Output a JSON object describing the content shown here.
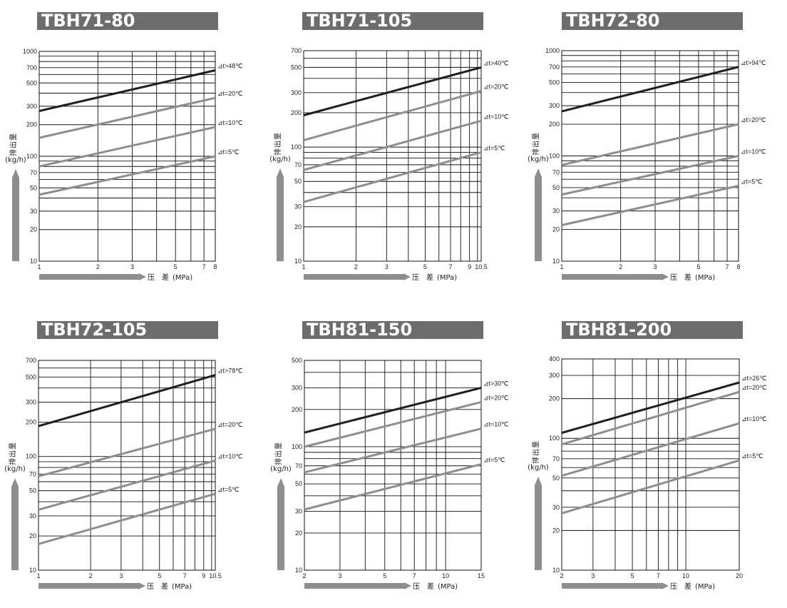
{
  "colors": {
    "title_bar": "#6d6d6d",
    "grid": "#111111",
    "dark_series": "#1f1f1f",
    "gray_series": "#8e8e8e",
    "arrow": "#8e8e8e"
  },
  "axis_labels": {
    "ylabel_chars": [
      "排",
      "出",
      "量"
    ],
    "y_unit": "(kg/h)",
    "xlabel_chars": [
      "压",
      "差"
    ],
    "x_unit": "(MPa)"
  },
  "chart_data": [
    {
      "title": "TBH71-80",
      "type": "line",
      "x_scale": "log",
      "y_scale": "log",
      "xlim": [
        1,
        8
      ],
      "ylim": [
        10,
        1000
      ],
      "x_ticks": [
        1,
        2,
        3,
        5,
        7,
        8
      ],
      "x_grid": [
        1,
        2,
        3,
        4,
        5,
        6,
        7,
        8
      ],
      "y_ticks": [
        10,
        20,
        30,
        50,
        70,
        100,
        200,
        300,
        500,
        700,
        1000
      ],
      "y_grid": [
        10,
        20,
        30,
        40,
        50,
        60,
        70,
        80,
        90,
        100,
        200,
        300,
        400,
        500,
        600,
        700,
        800,
        900,
        1000
      ],
      "xlabel": "压 差(MPa)",
      "ylabel": "排出量(kg/h)",
      "series": [
        {
          "name": "⊿t>48℃",
          "x": [
            1,
            8
          ],
          "y": [
            270,
            660
          ],
          "style": "dark"
        },
        {
          "name": "⊿t=20℃",
          "x": [
            1,
            8
          ],
          "y": [
            150,
            360
          ],
          "style": "gray"
        },
        {
          "name": "⊿t=10℃",
          "x": [
            1,
            8
          ],
          "y": [
            80,
            190
          ],
          "style": "gray"
        },
        {
          "name": "⊿t=5℃",
          "x": [
            1,
            8
          ],
          "y": [
            43,
            100
          ],
          "style": "gray"
        }
      ]
    },
    {
      "title": "TBH71-105",
      "type": "line",
      "x_scale": "log",
      "y_scale": "log",
      "xlim": [
        1,
        10.5
      ],
      "ylim": [
        10,
        700
      ],
      "x_ticks": [
        1,
        2,
        3,
        5,
        7,
        9,
        10.5
      ],
      "x_tick_labels": [
        "1",
        "2",
        "3",
        "5",
        "7",
        "9",
        "10.5"
      ],
      "x_grid": [
        1,
        2,
        3,
        4,
        5,
        6,
        7,
        8,
        9,
        10,
        10.5
      ],
      "y_ticks": [
        10,
        20,
        30,
        50,
        70,
        100,
        200,
        300,
        500,
        700
      ],
      "y_grid": [
        10,
        20,
        30,
        40,
        50,
        60,
        70,
        80,
        90,
        100,
        200,
        300,
        400,
        500,
        600,
        700
      ],
      "xlabel": "压 差(MPa)",
      "ylabel": "排出量(kg/h)",
      "series": [
        {
          "name": "⊿t>40℃",
          "x": [
            1,
            10.5
          ],
          "y": [
            190,
            500
          ],
          "style": "dark"
        },
        {
          "name": "⊿t=20℃",
          "x": [
            1,
            10.5
          ],
          "y": [
            115,
            310
          ],
          "style": "gray"
        },
        {
          "name": "⊿t=10℃",
          "x": [
            1,
            10.5
          ],
          "y": [
            63,
            170
          ],
          "style": "gray"
        },
        {
          "name": "⊿t=5℃",
          "x": [
            1,
            10.5
          ],
          "y": [
            33,
            90
          ],
          "style": "gray"
        }
      ]
    },
    {
      "title": "TBH72-80",
      "type": "line",
      "x_scale": "log",
      "y_scale": "log",
      "xlim": [
        1,
        8
      ],
      "ylim": [
        10,
        1000
      ],
      "x_ticks": [
        1,
        2,
        3,
        5,
        7,
        8
      ],
      "x_grid": [
        1,
        2,
        3,
        4,
        5,
        6,
        7,
        8
      ],
      "y_ticks": [
        10,
        20,
        30,
        50,
        70,
        100,
        200,
        300,
        500,
        700,
        1000
      ],
      "y_grid": [
        10,
        20,
        30,
        40,
        50,
        60,
        70,
        80,
        90,
        100,
        200,
        300,
        400,
        500,
        600,
        700,
        800,
        900,
        1000
      ],
      "xlabel": "压 差(MPa)",
      "ylabel": "排出量(kg/h)",
      "series": [
        {
          "name": "⊿t>94℃",
          "x": [
            1,
            8
          ],
          "y": [
            265,
            700
          ],
          "style": "dark"
        },
        {
          "name": "⊿t=20℃",
          "x": [
            1,
            8
          ],
          "y": [
            82,
            200
          ],
          "style": "gray"
        },
        {
          "name": "⊿t=10℃",
          "x": [
            1,
            8
          ],
          "y": [
            43,
            100
          ],
          "style": "gray"
        },
        {
          "name": "⊿t=5℃",
          "x": [
            1,
            8
          ],
          "y": [
            22,
            52
          ],
          "style": "gray"
        }
      ]
    },
    {
      "title": "TBH72-105",
      "type": "line",
      "x_scale": "log",
      "y_scale": "log",
      "xlim": [
        1,
        10.5
      ],
      "ylim": [
        10,
        700
      ],
      "x_ticks": [
        1,
        2,
        3,
        5,
        7,
        9,
        10.5
      ],
      "x_tick_labels": [
        "1",
        "2",
        "3",
        "5",
        "7",
        "9",
        "10.5"
      ],
      "x_grid": [
        1,
        2,
        3,
        4,
        5,
        6,
        7,
        8,
        9,
        10,
        10.5
      ],
      "y_ticks": [
        10,
        20,
        30,
        50,
        70,
        100,
        200,
        300,
        500,
        700
      ],
      "y_grid": [
        10,
        20,
        30,
        40,
        50,
        60,
        70,
        80,
        90,
        100,
        200,
        300,
        400,
        500,
        600,
        700
      ],
      "xlabel": "压 差(MPa)",
      "ylabel": "排出量(kg/h)",
      "series": [
        {
          "name": "⊿t>78℃",
          "x": [
            1,
            10.5
          ],
          "y": [
            185,
            520
          ],
          "style": "dark"
        },
        {
          "name": "⊿t=20℃",
          "x": [
            1,
            10.5
          ],
          "y": [
            67,
            175
          ],
          "style": "gray"
        },
        {
          "name": "⊿t=10℃",
          "x": [
            1,
            10.5
          ],
          "y": [
            34,
            92
          ],
          "style": "gray"
        },
        {
          "name": "⊿t=5℃",
          "x": [
            1,
            10.5
          ],
          "y": [
            17,
            47
          ],
          "style": "gray"
        }
      ]
    },
    {
      "title": "TBH81-150",
      "type": "line",
      "x_scale": "log",
      "y_scale": "log",
      "xlim": [
        2,
        15
      ],
      "ylim": [
        10,
        500
      ],
      "x_ticks": [
        2,
        3,
        5,
        7,
        10,
        15
      ],
      "x_grid": [
        2,
        3,
        4,
        5,
        6,
        7,
        8,
        9,
        10,
        15
      ],
      "y_ticks": [
        10,
        20,
        30,
        50,
        70,
        100,
        200,
        300,
        500
      ],
      "y_grid": [
        10,
        20,
        30,
        40,
        50,
        60,
        70,
        80,
        90,
        100,
        200,
        300,
        400,
        500
      ],
      "xlabel": "压 差(MPa)",
      "ylabel": "排出量(kg/h)",
      "series": [
        {
          "name": "⊿t>30℃",
          "x": [
            2,
            15
          ],
          "y": [
            130,
            300
          ],
          "style": "dark"
        },
        {
          "name": "⊿t=20℃",
          "x": [
            2,
            15
          ],
          "y": [
            100,
            230
          ],
          "style": "gray"
        },
        {
          "name": "⊿t=10℃",
          "x": [
            2,
            15
          ],
          "y": [
            62,
            140
          ],
          "style": "gray"
        },
        {
          "name": "⊿t=5℃",
          "x": [
            2,
            15
          ],
          "y": [
            31,
            72
          ],
          "style": "gray"
        }
      ]
    },
    {
      "title": "TBH81-200",
      "type": "line",
      "x_scale": "log",
      "y_scale": "log",
      "xlim": [
        2,
        20
      ],
      "ylim": [
        10,
        400
      ],
      "x_ticks": [
        2,
        3,
        5,
        7,
        10,
        20
      ],
      "x_grid": [
        2,
        3,
        4,
        5,
        6,
        7,
        8,
        9,
        10,
        20
      ],
      "y_ticks": [
        10,
        20,
        30,
        50,
        70,
        100,
        200,
        300,
        400
      ],
      "y_grid": [
        10,
        20,
        30,
        40,
        50,
        60,
        70,
        80,
        90,
        100,
        200,
        300,
        400
      ],
      "xlabel": "压 差(MPa)",
      "ylabel": "排出量(kg/h)",
      "series": [
        {
          "name": "⊿t>26℃",
          "x": [
            2,
            20
          ],
          "y": [
            110,
            265
          ],
          "style": "dark"
        },
        {
          "name": "⊿t=20℃",
          "x": [
            2,
            20
          ],
          "y": [
            90,
            225
          ],
          "style": "gray"
        },
        {
          "name": "⊿t=10℃",
          "x": [
            2,
            20
          ],
          "y": [
            52,
            130
          ],
          "style": "gray"
        },
        {
          "name": "⊿t=5℃",
          "x": [
            2,
            20
          ],
          "y": [
            27,
            68
          ],
          "style": "gray"
        }
      ]
    }
  ]
}
